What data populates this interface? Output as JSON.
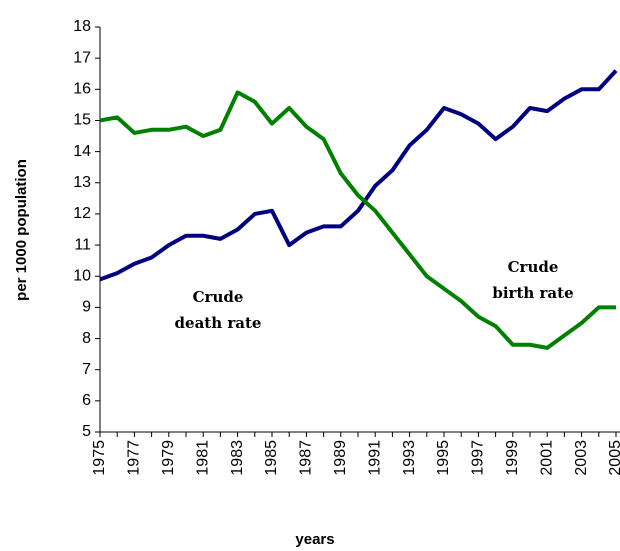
{
  "chart_data": {
    "type": "line",
    "x_label": "years",
    "y_label": "per 1000 population",
    "categories": [
      "1975",
      null,
      "1977",
      null,
      "1979",
      null,
      "1981",
      null,
      "1983",
      null,
      "1985",
      null,
      "1987",
      null,
      "1989",
      null,
      "1991",
      null,
      "1993",
      null,
      "1995",
      null,
      "1997",
      null,
      "1999",
      null,
      "2001",
      null,
      "2003",
      null,
      "2005"
    ],
    "series": [
      {
        "label_lines": [
          "Crude",
          "death rate"
        ],
        "color": "#000080",
        "values": [
          9.9,
          10.1,
          10.4,
          10.6,
          11.0,
          11.3,
          11.3,
          11.2,
          11.5,
          12.0,
          12.1,
          11.0,
          11.4,
          11.6,
          11.6,
          12.1,
          12.9,
          13.4,
          14.2,
          14.7,
          15.4,
          15.2,
          14.9,
          14.4,
          14.8,
          15.4,
          15.3,
          15.7,
          16.0,
          16.0,
          16.6
        ]
      },
      {
        "label_lines": [
          "Crude",
          "birth rate"
        ],
        "color": "#008000",
        "values": [
          15.0,
          15.1,
          14.6,
          14.7,
          14.7,
          14.8,
          14.5,
          14.7,
          15.9,
          15.6,
          14.9,
          15.4,
          14.8,
          14.4,
          13.3,
          12.6,
          12.1,
          11.4,
          10.7,
          10.0,
          9.6,
          9.2,
          8.7,
          8.4,
          7.8,
          7.8,
          7.7,
          8.1,
          8.5,
          9.0,
          9.0
        ]
      }
    ],
    "ylim": [
      5,
      18
    ],
    "yticks": [
      5,
      6,
      7,
      8,
      9,
      10,
      11,
      12,
      13,
      14,
      15,
      16,
      17,
      18
    ]
  }
}
